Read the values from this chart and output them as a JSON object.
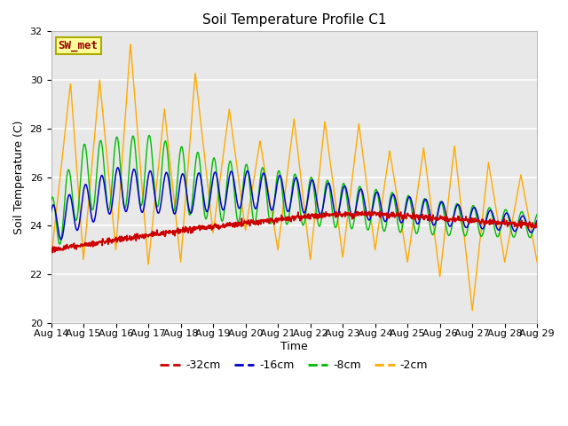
{
  "title": "Soil Temperature Profile C1",
  "xlabel": "Time",
  "ylabel": "Soil Temperature (C)",
  "ylim": [
    20,
    32
  ],
  "yticks": [
    20,
    22,
    24,
    26,
    28,
    30,
    32
  ],
  "x_labels": [
    "Aug 14",
    "Aug 15",
    "Aug 16",
    "Aug 17",
    "Aug 18",
    "Aug 19",
    "Aug 20",
    "Aug 21",
    "Aug 22",
    "Aug 23",
    "Aug 24",
    "Aug 25",
    "Aug 26",
    "Aug 27",
    "Aug 28",
    "Aug 29"
  ],
  "colors": {
    "-32cm": "#cc0000",
    "-16cm": "#0000cc",
    "-8cm": "#00bb00",
    "-2cm": "#ffaa00"
  },
  "legend_label": "SW_met",
  "legend_box_facecolor": "#ffff99",
  "legend_box_edgecolor": "#aaaa00",
  "plot_bg": "#e8e8e8",
  "fig_bg": "#ffffff"
}
